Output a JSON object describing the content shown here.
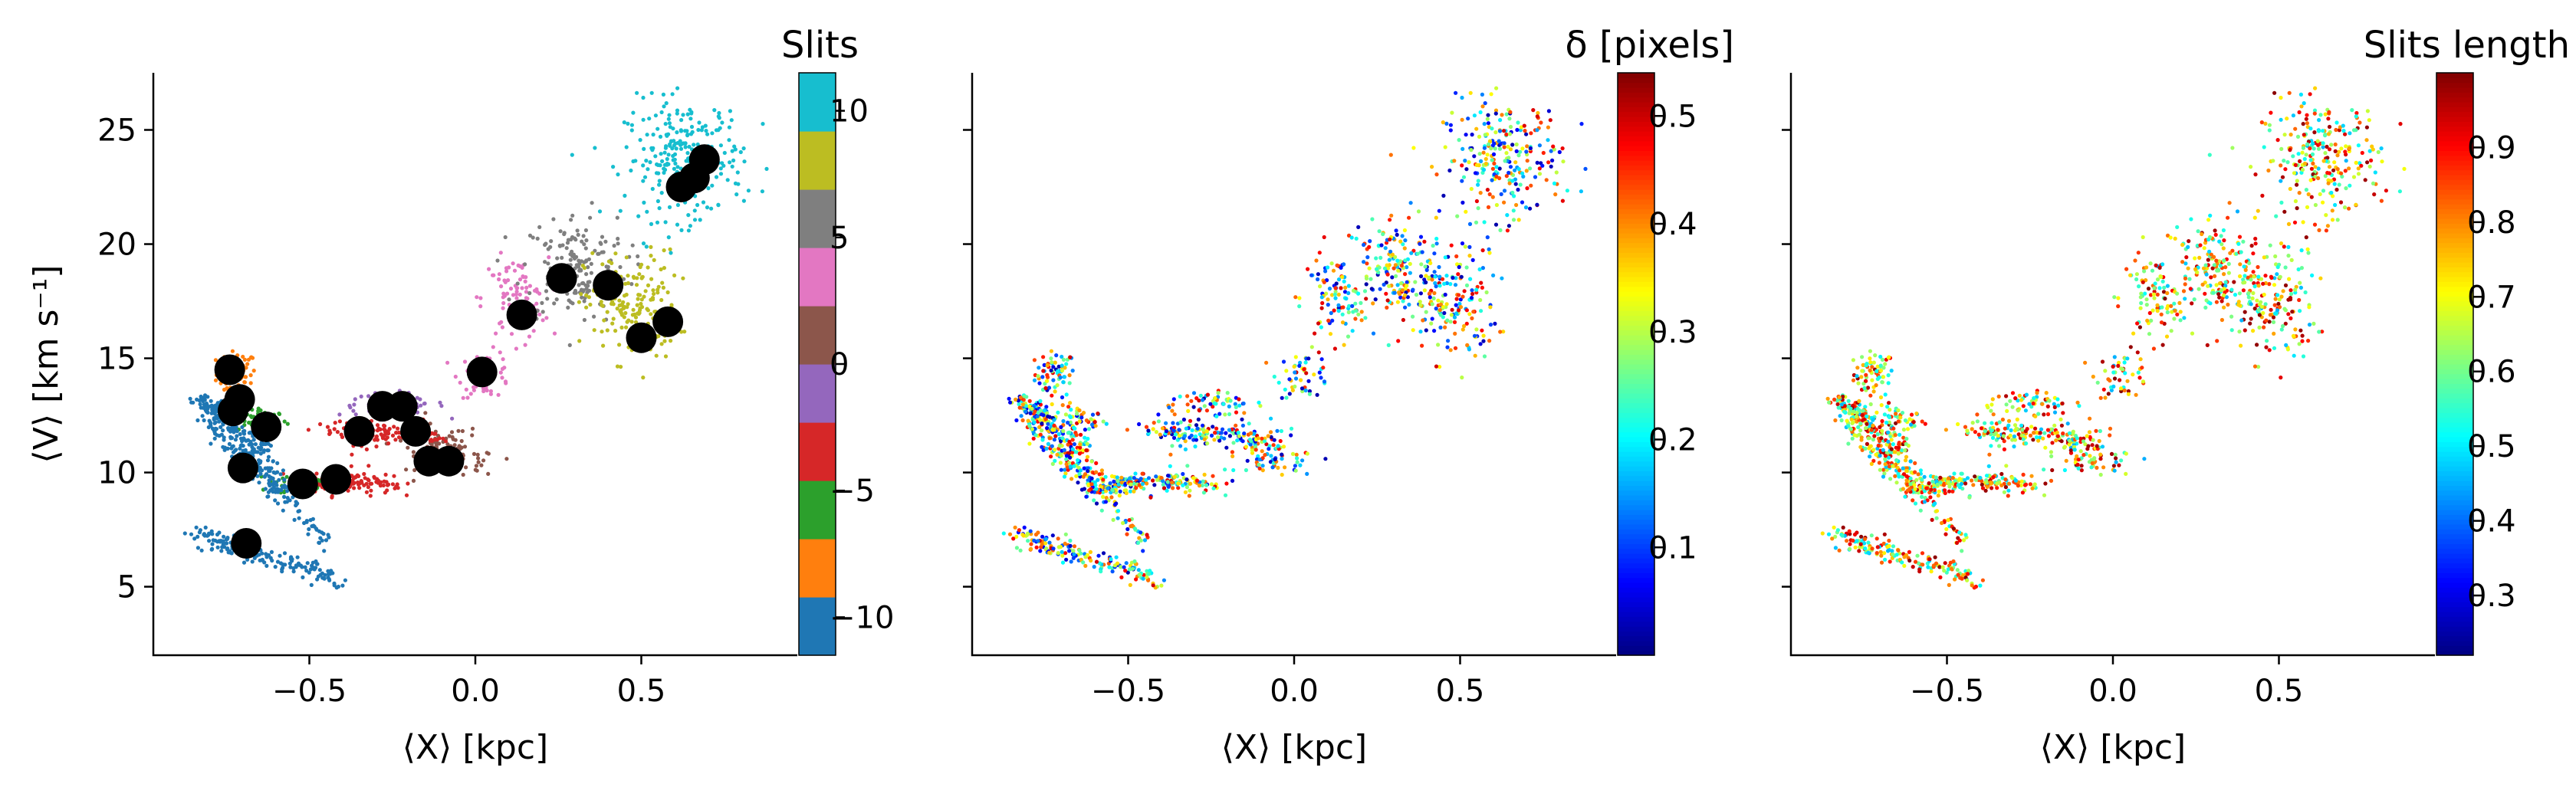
{
  "chart_data": [
    {
      "type": "scatter",
      "panel": "slits",
      "colorbar_title": "Slits",
      "xlabel": "⟨X⟩ [kpc]",
      "ylabel": "⟨V⟩ [km s⁻¹]",
      "xlim": [
        -0.97,
        0.97
      ],
      "ylim": [
        2,
        27.5
      ],
      "xticks": [
        -0.5,
        0.0,
        0.5
      ],
      "xtick_labels": [
        "−0.5",
        "0.0",
        "0.5"
      ],
      "yticks": [
        5,
        10,
        15,
        20,
        25
      ],
      "ytick_labels": [
        "5",
        "10",
        "15",
        "20",
        "25"
      ],
      "colorbar": {
        "type": "discrete",
        "min": -11.5,
        "max": 11.5,
        "ticks": [
          -10,
          -5,
          0,
          5,
          10
        ],
        "tick_labels": [
          "−10",
          "−5",
          "0",
          "5",
          "10"
        ],
        "colors": [
          "#1f77b4",
          "#ff7f0e",
          "#2ca02c",
          "#d62728",
          "#9467bd",
          "#8c564b",
          "#e377c2",
          "#7f7f7f",
          "#bcbd22",
          "#17becf"
        ]
      },
      "clusters": [
        {
          "x": -0.72,
          "y": 14.3,
          "sx": 0.03,
          "sy": 0.5,
          "n": 70,
          "c": "#ff7f0e"
        },
        {
          "x": -0.65,
          "y": 12.3,
          "sx": 0.04,
          "sy": 0.3,
          "n": 50,
          "c": "#2ca02c"
        },
        {
          "x": -0.53,
          "y": 9.5,
          "sx": 0.05,
          "sy": 0.3,
          "n": 50,
          "c": "#2ca02c"
        },
        {
          "x": -0.37,
          "y": 9.6,
          "sx": 0.06,
          "sy": 0.3,
          "n": 60,
          "c": "#d62728"
        },
        {
          "x": -0.3,
          "y": 11.8,
          "sx": 0.07,
          "sy": 0.3,
          "n": 60,
          "c": "#d62728"
        },
        {
          "x": -0.25,
          "y": 13.0,
          "sx": 0.08,
          "sy": 0.25,
          "n": 60,
          "c": "#9467bd"
        },
        {
          "x": -0.12,
          "y": 11.3,
          "sx": 0.07,
          "sy": 0.4,
          "n": 60,
          "c": "#8c564b"
        },
        {
          "x": -0.05,
          "y": 10.4,
          "sx": 0.06,
          "sy": 0.3,
          "n": 50,
          "c": "#8c564b"
        },
        {
          "x": 0.03,
          "y": 14.3,
          "sx": 0.04,
          "sy": 0.5,
          "n": 50,
          "c": "#e377c2"
        },
        {
          "x": 0.12,
          "y": 17.6,
          "sx": 0.05,
          "sy": 0.9,
          "n": 90,
          "c": "#e377c2"
        },
        {
          "x": 0.3,
          "y": 19.0,
          "sx": 0.08,
          "sy": 1.2,
          "n": 170,
          "c": "#7f7f7f"
        },
        {
          "x": 0.47,
          "y": 17.3,
          "sx": 0.07,
          "sy": 1.2,
          "n": 170,
          "c": "#bcbd22"
        },
        {
          "x": 0.63,
          "y": 23.7,
          "sx": 0.09,
          "sy": 1.3,
          "n": 260,
          "c": "#17becf"
        }
      ],
      "streaks": [
        {
          "x0": -0.82,
          "y0": 13.2,
          "x1": -0.55,
          "y1": 9.0,
          "w": 0.5,
          "n": 160,
          "c": "#1f77b4"
        },
        {
          "x0": -0.85,
          "y0": 13.3,
          "x1": -0.62,
          "y1": 11.0,
          "w": 0.4,
          "n": 90,
          "c": "#1f77b4"
        },
        {
          "x0": -0.8,
          "y0": 12.0,
          "x1": -0.45,
          "y1": 7.0,
          "w": 0.4,
          "n": 120,
          "c": "#1f77b4"
        },
        {
          "x0": -0.85,
          "y0": 7.4,
          "x1": -0.4,
          "y1": 5.3,
          "w": 0.5,
          "n": 160,
          "c": "#1f77b4"
        },
        {
          "x0": -0.55,
          "y0": 9.6,
          "x1": -0.25,
          "y1": 9.5,
          "w": 0.3,
          "n": 60,
          "c": "#d62728"
        },
        {
          "x0": -0.45,
          "y0": 11.9,
          "x1": -0.1,
          "y1": 11.6,
          "w": 0.3,
          "n": 60,
          "c": "#d62728"
        }
      ],
      "slit_centers": [
        {
          "x": -0.74,
          "y": 14.5
        },
        {
          "x": -0.71,
          "y": 13.2
        },
        {
          "x": -0.73,
          "y": 12.7
        },
        {
          "x": -0.63,
          "y": 12.0
        },
        {
          "x": -0.7,
          "y": 10.2
        },
        {
          "x": -0.52,
          "y": 9.5
        },
        {
          "x": -0.42,
          "y": 9.7
        },
        {
          "x": -0.35,
          "y": 11.8
        },
        {
          "x": -0.28,
          "y": 12.9
        },
        {
          "x": -0.22,
          "y": 12.9
        },
        {
          "x": -0.18,
          "y": 11.8
        },
        {
          "x": -0.14,
          "y": 10.5
        },
        {
          "x": -0.08,
          "y": 10.5
        },
        {
          "x": 0.02,
          "y": 14.4
        },
        {
          "x": 0.14,
          "y": 16.9
        },
        {
          "x": 0.26,
          "y": 18.5
        },
        {
          "x": 0.4,
          "y": 18.2
        },
        {
          "x": 0.5,
          "y": 15.9
        },
        {
          "x": 0.58,
          "y": 16.6
        },
        {
          "x": 0.62,
          "y": 22.5
        },
        {
          "x": 0.66,
          "y": 22.9
        },
        {
          "x": 0.69,
          "y": 23.7
        },
        {
          "x": -0.69,
          "y": 6.9
        }
      ]
    },
    {
      "type": "scatter",
      "panel": "delta",
      "colorbar_title": "δ [pixels]",
      "xlabel": "⟨X⟩ [kpc]",
      "xlim": [
        -0.97,
        0.97
      ],
      "ylim": [
        2,
        27.5
      ],
      "xticks": [
        -0.5,
        0.0,
        0.5
      ],
      "xtick_labels": [
        "−0.5",
        "0.0",
        "0.5"
      ],
      "colorbar": {
        "type": "continuous",
        "cmap": "jet",
        "min": 0.0,
        "max": 0.54,
        "ticks": [
          0.1,
          0.2,
          0.3,
          0.4,
          0.5
        ],
        "tick_labels": [
          "0.1",
          "0.2",
          "0.3",
          "0.4",
          "0.5"
        ]
      },
      "color_range": [
        0.02,
        0.5
      ]
    },
    {
      "type": "scatter",
      "panel": "slit_length",
      "colorbar_title": "Slits length",
      "xlabel": "⟨X⟩ [kpc]",
      "xlim": [
        -0.97,
        0.97
      ],
      "ylim": [
        2,
        27.5
      ],
      "xticks": [
        -0.5,
        0.0,
        0.5
      ],
      "xtick_labels": [
        "−0.5",
        "0.0",
        "0.5"
      ],
      "colorbar": {
        "type": "continuous",
        "cmap": "jet",
        "min": 0.22,
        "max": 1.0,
        "ticks": [
          0.3,
          0.4,
          0.5,
          0.6,
          0.7,
          0.8,
          0.9
        ],
        "tick_labels": [
          "0.3",
          "0.4",
          "0.5",
          "0.6",
          "0.7",
          "0.8",
          "0.9"
        ]
      },
      "color_range": [
        0.45,
        1.0
      ]
    }
  ]
}
